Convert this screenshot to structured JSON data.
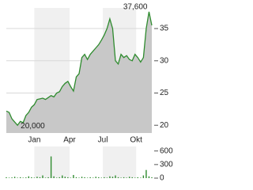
{
  "chart_data": [
    {
      "type": "area",
      "x": [
        0,
        1,
        2,
        3,
        4,
        5,
        6,
        7,
        8,
        9,
        10,
        11,
        12,
        13,
        14,
        15,
        16,
        17,
        18,
        19,
        20,
        21,
        22,
        23,
        24,
        25,
        26,
        27,
        28,
        29,
        30,
        31,
        32,
        33,
        34,
        35,
        36,
        37,
        38,
        39,
        40,
        41,
        42,
        43,
        44,
        45,
        46,
        47,
        48,
        49,
        50,
        51,
        52
      ],
      "series": [
        {
          "color": "#2e8b2e",
          "fill": "#c8c8c8",
          "values": [
            22.2,
            22.0,
            21.0,
            20.5,
            20.0,
            20.6,
            20.4,
            21.5,
            22.0,
            22.8,
            23.2,
            24.0,
            24.1,
            24.2,
            24.0,
            24.3,
            24.6,
            24.4,
            25.0,
            25.2,
            26.0,
            26.5,
            26.8,
            26.0,
            25.3,
            27.5,
            28.0,
            30.5,
            31.0,
            30.2,
            31.0,
            31.5,
            32.0,
            32.5,
            33.2,
            34.0,
            35.0,
            36.5,
            35.0,
            30.0,
            29.5,
            31.0,
            30.5,
            30.8,
            30.2,
            30.0,
            31.0,
            30.5,
            29.8,
            30.5,
            35.0,
            37.6,
            35.5
          ]
        }
      ],
      "xlim": [
        0,
        52
      ],
      "xticks": [
        {
          "value": 10,
          "label": "Jan"
        },
        {
          "value": 22.6,
          "label": "Apr"
        },
        {
          "value": 34.5,
          "label": "Jul"
        },
        {
          "value": 46.4,
          "label": "Okt"
        }
      ],
      "ylim": [
        18.8,
        38.2
      ],
      "yticks": [
        20,
        25,
        30,
        35
      ],
      "max_label": "37,600",
      "min_label": "20,000",
      "grid": true
    },
    {
      "type": "bar",
      "x": [
        0,
        1,
        2,
        3,
        4,
        5,
        6,
        7,
        8,
        9,
        10,
        11,
        12,
        13,
        14,
        15,
        16,
        17,
        18,
        19,
        20,
        21,
        22,
        23,
        24,
        25,
        26,
        27,
        28,
        29,
        30,
        31,
        32,
        33,
        34,
        35,
        36,
        37,
        38,
        39,
        40,
        41,
        42,
        43,
        44,
        45,
        46,
        47,
        48,
        49,
        50,
        51,
        52
      ],
      "series": [
        {
          "color": "#2e8b2e",
          "values": [
            20,
            10,
            15,
            30,
            10,
            20,
            10,
            15,
            40,
            20,
            10,
            30,
            20,
            60,
            10,
            20,
            480,
            40,
            10,
            20,
            60,
            30,
            20,
            10,
            70,
            20,
            10,
            30,
            20,
            10,
            20,
            10,
            30,
            20,
            10,
            20,
            10,
            40,
            30,
            60,
            20,
            10,
            20,
            10,
            30,
            20,
            10,
            20,
            10,
            60,
            180,
            40,
            20
          ]
        }
      ],
      "xlim": [
        0,
        52
      ],
      "ylim": [
        0,
        700
      ],
      "yticks": [
        0,
        300,
        600
      ]
    }
  ]
}
